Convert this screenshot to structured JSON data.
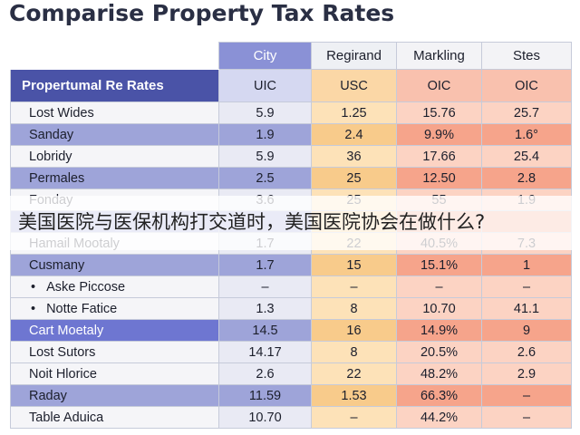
{
  "title": "Comparise Property Tax Rates",
  "columns": [
    "City",
    "Regirand",
    "Markling",
    "Stes"
  ],
  "label_header": "Propertumal Re Rates",
  "subheaders": [
    "UIC",
    "USC",
    "OIC",
    "OIC"
  ],
  "rows": [
    {
      "label": "Lost Wides",
      "values": [
        "5.9",
        "1.25",
        "15.76",
        "25.7"
      ]
    },
    {
      "label": "Sanday",
      "values": [
        "1.9",
        "2.4",
        "9.9%",
        "1.6°"
      ]
    },
    {
      "label": "Lobridy",
      "values": [
        "5.9",
        "36",
        "17.66",
        "25.4"
      ]
    },
    {
      "label": "Permales",
      "values": [
        "2.5",
        "25",
        "12.50",
        "2.8"
      ]
    },
    {
      "label": "Fonday",
      "values": [
        "3.6",
        "25",
        "55",
        "1.9"
      ]
    },
    {
      "label": "",
      "values": [
        "",
        "",
        "",
        ""
      ]
    },
    {
      "label": "Hamail Mootaly",
      "values": [
        "1.7",
        "22",
        "40.5%",
        "7.3"
      ]
    },
    {
      "label": "Cusmany",
      "values": [
        "1.7",
        "15",
        "15.1%",
        "1"
      ]
    },
    {
      "label": "Aske Piccose",
      "values": [
        "–",
        "–",
        "–",
        "–"
      ]
    },
    {
      "label": "Notte Fatice",
      "values": [
        "1.3",
        "8",
        "10.70",
        "41.1"
      ]
    },
    {
      "label": "Cart Moetaly",
      "values": [
        "14.5",
        "16",
        "14.9%",
        "9"
      ]
    },
    {
      "label": "Lost Sutors",
      "values": [
        "14.17",
        "8",
        "20.5%",
        "2.6"
      ]
    },
    {
      "label": "Noit Hlorice",
      "values": [
        "2.6",
        "22",
        "48.2%",
        "2.9"
      ]
    },
    {
      "label": "Raday",
      "values": [
        "11.59",
        "1.53",
        "66.3%",
        "–"
      ]
    },
    {
      "label": "Table Aduica",
      "values": [
        "10.70",
        "–",
        "44.2%",
        "–"
      ]
    }
  ],
  "overlay_text": "美国医院与医保机构打交道时，美国医院协会在做什么?"
}
